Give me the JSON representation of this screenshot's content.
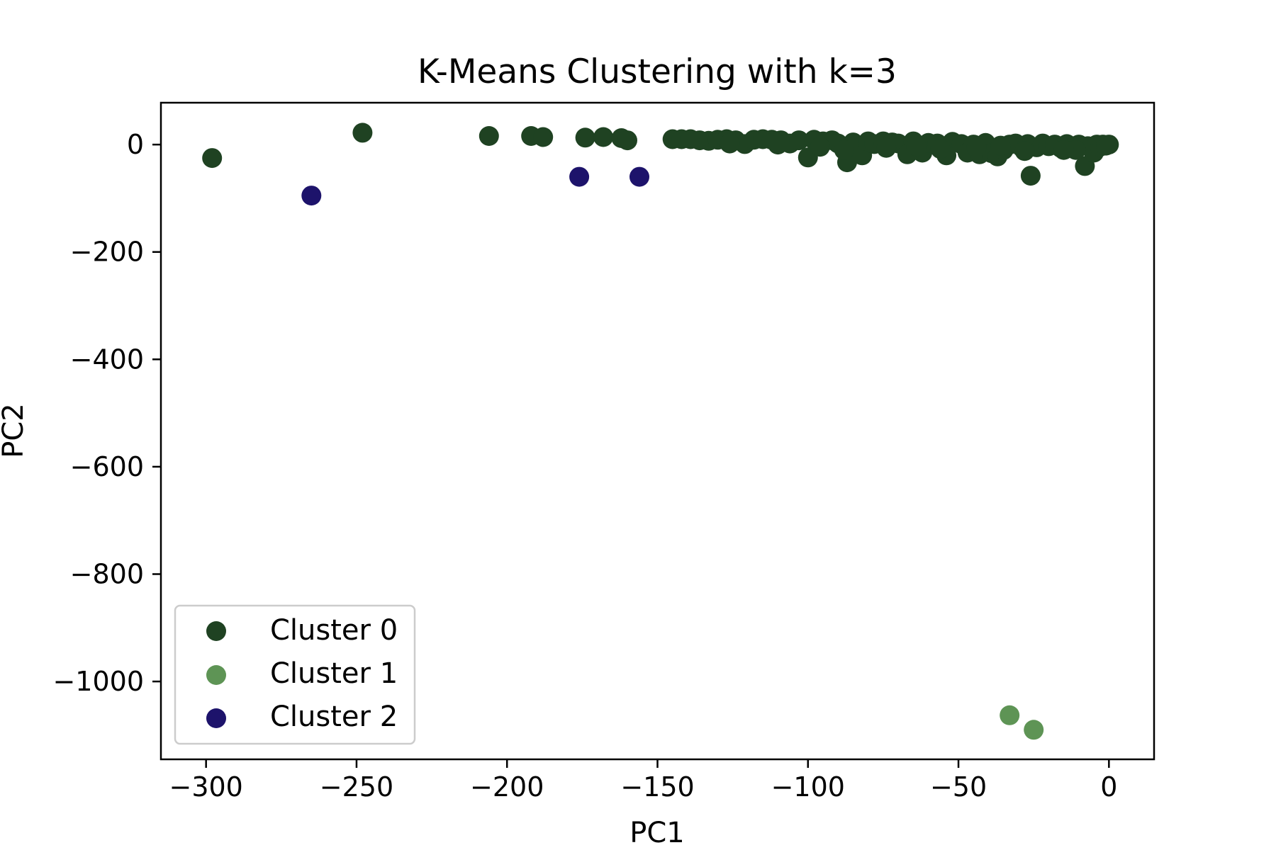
{
  "chart_data": {
    "type": "scatter",
    "title": "K-Means Clustering with k=3",
    "xlabel": "PC1",
    "ylabel": "PC2",
    "xlim": [
      -315,
      15
    ],
    "ylim": [
      -1145,
      78
    ],
    "xticks": [
      -300,
      -250,
      -200,
      -150,
      -100,
      -50,
      0
    ],
    "yticks": [
      0,
      -200,
      -400,
      -600,
      -800,
      -1000
    ],
    "xtick_labels": [
      "−300",
      "−250",
      "−200",
      "−150",
      "−100",
      "−50",
      "0"
    ],
    "ytick_labels": [
      "0",
      "−200",
      "−400",
      "−600",
      "−800",
      "−1000"
    ],
    "grid": false,
    "legend_position": "lower-left",
    "series": [
      {
        "name": "Cluster 0",
        "color": "#1f4222",
        "points": [
          [
            -298,
            -25
          ],
          [
            -248,
            22
          ],
          [
            -206,
            16
          ],
          [
            -192,
            16
          ],
          [
            -188,
            14
          ],
          [
            -174,
            13
          ],
          [
            -168,
            14
          ],
          [
            -162,
            12
          ],
          [
            -160,
            8
          ],
          [
            -145,
            10
          ],
          [
            -142,
            10
          ],
          [
            -139,
            10
          ],
          [
            -136,
            8
          ],
          [
            -133,
            7
          ],
          [
            -130,
            9
          ],
          [
            -127,
            10
          ],
          [
            -124,
            8
          ],
          [
            -121,
            1
          ],
          [
            -118,
            9
          ],
          [
            -115,
            10
          ],
          [
            -112,
            9
          ],
          [
            -109,
            8
          ],
          [
            -106,
            2
          ],
          [
            -103,
            8
          ],
          [
            -100,
            -24
          ],
          [
            -98,
            9
          ],
          [
            -95,
            6
          ],
          [
            -92,
            8
          ],
          [
            -90,
            2
          ],
          [
            -87,
            -33
          ],
          [
            -85,
            4
          ],
          [
            -82,
            -20
          ],
          [
            -80,
            6
          ],
          [
            -78,
            1
          ],
          [
            -75,
            6
          ],
          [
            -72,
            4
          ],
          [
            -70,
            2
          ],
          [
            -67,
            -18
          ],
          [
            -65,
            6
          ],
          [
            -62,
            -15
          ],
          [
            -60,
            3
          ],
          [
            -57,
            2
          ],
          [
            -54,
            -20
          ],
          [
            -52,
            5
          ],
          [
            -49,
            1
          ],
          [
            -47,
            -15
          ],
          [
            -45,
            0
          ],
          [
            -43,
            -18
          ],
          [
            -41,
            3
          ],
          [
            -39,
            -16
          ],
          [
            -37,
            -22
          ],
          [
            -35,
            -10
          ],
          [
            -33,
            0
          ],
          [
            -31,
            2
          ],
          [
            -29,
            -5
          ],
          [
            -27,
            1
          ],
          [
            -26,
            -58
          ],
          [
            -24,
            -5
          ],
          [
            -22,
            2
          ],
          [
            -20,
            -3
          ],
          [
            -18,
            0
          ],
          [
            -16,
            -6
          ],
          [
            -14,
            1
          ],
          [
            -12,
            -5
          ],
          [
            -10,
            0
          ],
          [
            -8,
            -40
          ],
          [
            -7,
            -3
          ],
          [
            -5,
            -15
          ],
          [
            -4,
            0
          ],
          [
            -3,
            -4
          ],
          [
            -2,
            0
          ],
          [
            -1,
            -2
          ],
          [
            0,
            0
          ],
          [
            -11,
            -10
          ],
          [
            -15,
            -10
          ],
          [
            -28,
            -12
          ],
          [
            -36,
            -2
          ],
          [
            -44,
            -5
          ],
          [
            -56,
            -8
          ],
          [
            -64,
            -3
          ],
          [
            -74,
            -6
          ],
          [
            -88,
            -10
          ],
          [
            -96,
            -4
          ],
          [
            -110,
            0
          ],
          [
            -126,
            2
          ]
        ]
      },
      {
        "name": "Cluster 1",
        "color": "#5e9455",
        "points": [
          [
            -33,
            -1063
          ],
          [
            -25,
            -1090
          ]
        ]
      },
      {
        "name": "Cluster 2",
        "color": "#1d136b",
        "points": [
          [
            -265,
            -95
          ],
          [
            -176,
            -60
          ],
          [
            -156,
            -60
          ]
        ]
      }
    ]
  }
}
